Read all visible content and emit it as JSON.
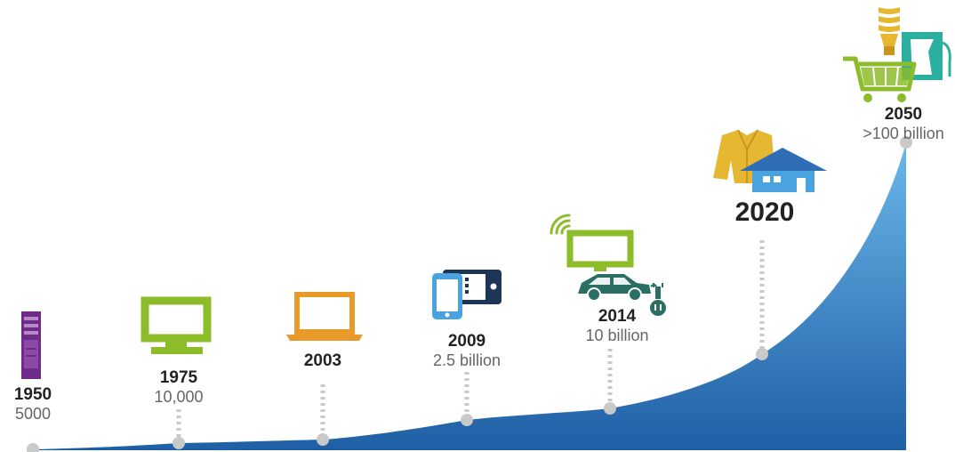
{
  "caption": "",
  "colors": {
    "area_top": "#6bb8ea",
    "area_bottom": "#1f5fa5",
    "marker": "#c9c9c9",
    "dotted": "#c9c9c9",
    "year_text": "#222222",
    "value_text": "#666666",
    "purple": "#6e2b8a",
    "green": "#8cbc2a",
    "orange": "#e89a2a",
    "navy": "#1d3557",
    "light_blue": "#4aa3df",
    "teal": "#2b6e63",
    "yellow": "#e6b730",
    "blue_house": "#2f6eb5",
    "aqua": "#2bb0a0"
  },
  "chart_data": {
    "type": "area",
    "x": [
      1950,
      1975,
      2003,
      2009,
      2014,
      2020,
      2050
    ],
    "xlim": [
      1950,
      2050
    ],
    "milestones": [
      {
        "year": "1950",
        "value": "5000",
        "icons": [
          "desktop-tower-icon"
        ]
      },
      {
        "year": "1975",
        "value": "10,000",
        "icons": [
          "monitor-icon"
        ]
      },
      {
        "year": "2003",
        "value": "",
        "icons": [
          "laptop-icon"
        ]
      },
      {
        "year": "2009",
        "value": "2.5 billion",
        "icons": [
          "smartphone-icon",
          "tablet-icon"
        ]
      },
      {
        "year": "2014",
        "value": "10 billion",
        "icons": [
          "wifi-icon",
          "tv-icon",
          "electric-car-icon",
          "plug-icon"
        ]
      },
      {
        "year": "2020",
        "value": "",
        "icons": [
          "jacket-icon",
          "house-icon"
        ]
      },
      {
        "year": "2050",
        "value": ">100 billion",
        "icons": [
          "light-bulb-icon",
          "shopping-cart-icon",
          "fuel-pump-icon"
        ]
      }
    ]
  }
}
